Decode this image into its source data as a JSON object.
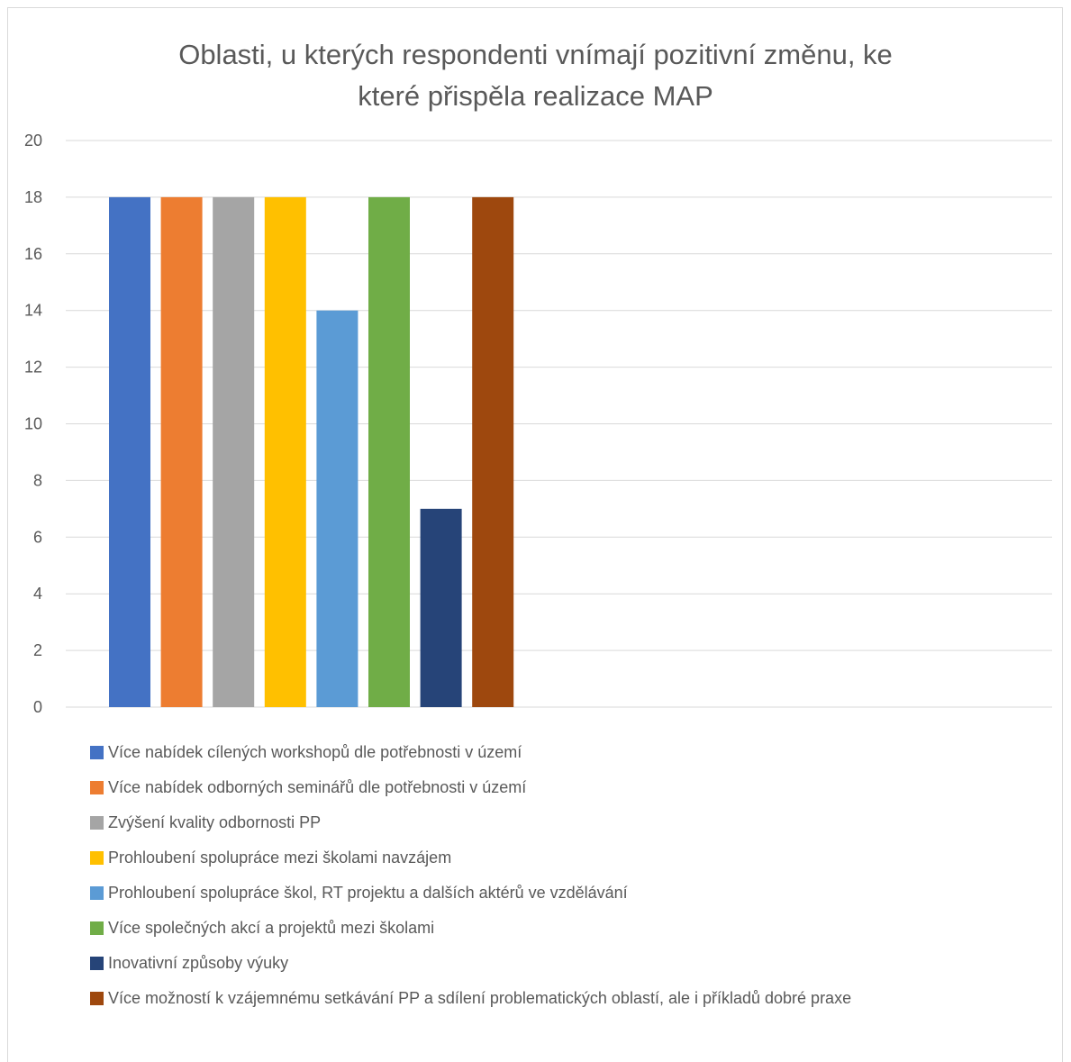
{
  "chart_data": {
    "type": "bar",
    "title": "Oblasti, u kterých respondenti vnímají pozitivní změnu, ke které přispěla realizace MAP",
    "title_lines": [
      "Oblasti, u kterých respondenti vnímají pozitivní změnu, ke",
      "které přispěla realizace MAP"
    ],
    "ylim": [
      0,
      20
    ],
    "yticks": [
      0,
      2,
      4,
      6,
      8,
      10,
      12,
      14,
      16,
      18,
      20
    ],
    "grid": true,
    "legend_position": "bottom",
    "series": [
      {
        "name": "Více nabídek cílených workshopů dle potřebnosti v území",
        "value": 18,
        "color": "#4472c4"
      },
      {
        "name": "Více nabídek odborných seminářů dle potřebnosti v území",
        "value": 18,
        "color": "#ed7d31"
      },
      {
        "name": "Zvýšení kvality odbornosti PP",
        "value": 18,
        "color": "#a5a5a5"
      },
      {
        "name": "Prohloubení spolupráce mezi školami navzájem",
        "value": 18,
        "color": "#ffc000"
      },
      {
        "name": "Prohloubení spolupráce škol, RT projektu a dalších aktérů ve vzdělávání",
        "value": 14,
        "color": "#5b9bd5"
      },
      {
        "name": "Více společných akcí a projektů mezi školami",
        "value": 18,
        "color": "#70ad47"
      },
      {
        "name": "Inovativní způsoby výuky",
        "value": 7,
        "color": "#264478"
      },
      {
        "name": "Více možností k vzájemnému setkávání PP a sdílení problematických oblastí, ale i příkladů dobré praxe",
        "value": 18,
        "color": "#9e480e"
      }
    ]
  }
}
